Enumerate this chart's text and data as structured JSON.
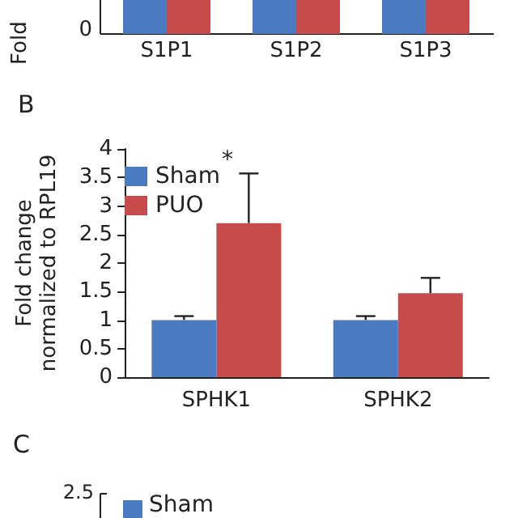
{
  "chart_data": [
    {
      "type": "other",
      "ylabel": "Fold",
      "categories": [
        "S1P1",
        "S1P2",
        "S1P3"
      ],
      "annotations": [
        "0"
      ]
    },
    {
      "type": "bar",
      "title": "B",
      "ylabel": "Fold change normalized to RPL19",
      "categories": [
        "SPHK1",
        "SPHK2"
      ],
      "series": [
        {
          "name": "Sham",
          "color": "#4a7bc0",
          "values": [
            1.0,
            1.0
          ],
          "errors": [
            [
              1.0,
              1.07
            ],
            [
              1.0,
              1.07
            ]
          ]
        },
        {
          "name": "PUO",
          "color": "#c84b4b",
          "values": [
            2.7,
            1.47
          ],
          "errors": [
            [
              2.7,
              3.57
            ],
            [
              1.47,
              1.74
            ]
          ]
        }
      ],
      "ylim": [
        0,
        4
      ],
      "yticks": [
        0,
        0.5,
        1,
        1.5,
        2,
        2.5,
        3,
        3.5,
        4
      ],
      "grid": false,
      "legend": "top left",
      "annotations": [
        "*"
      ]
    },
    {
      "type": "other",
      "title": "C",
      "annotations": [
        "2.5",
        "Sham"
      ]
    }
  ]
}
